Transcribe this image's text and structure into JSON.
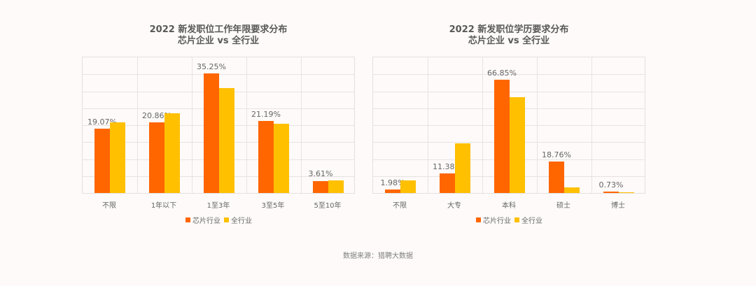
{
  "colors": {
    "background": "#fdfaf9",
    "series_chip": "#ff6600",
    "series_all": "#ffc000",
    "grid": "#e6e3e2",
    "text": "#595959"
  },
  "legend": {
    "series": [
      "芯片行业",
      "全行业"
    ]
  },
  "source": "数据来源：猎聘大数据",
  "chart_data": [
    {
      "type": "bar",
      "title": "2022 新发职位工作年限要求分布",
      "subtitle": "芯片企业 vs 全行业",
      "xlabel": "",
      "ylabel": "",
      "categories": [
        "不限",
        "1年以下",
        "1至3年",
        "3至5年",
        "5至10年"
      ],
      "series": [
        {
          "name": "芯片行业",
          "color": "#ff6600",
          "values": [
            19.07,
            20.86,
            35.25,
            21.19,
            3.61
          ],
          "labels": [
            "19.07%",
            "20.86%",
            "35.25%",
            "21.19%",
            "3.61%"
          ]
        },
        {
          "name": "全行业",
          "color": "#ffc000",
          "values": [
            20.9,
            23.6,
            31.0,
            20.4,
            3.8
          ]
        }
      ],
      "ylim": [
        0,
        40
      ],
      "grid": true,
      "gridlines": 8,
      "legend_position": "bottom"
    },
    {
      "type": "bar",
      "title": "2022 新发职位学历要求分布",
      "subtitle": "芯片企业 vs 全行业",
      "xlabel": "",
      "ylabel": "",
      "categories": [
        "不限",
        "大专",
        "本科",
        "硕士",
        "博士"
      ],
      "series": [
        {
          "name": "芯片行业",
          "color": "#ff6600",
          "values": [
            1.98,
            11.38,
            66.85,
            18.76,
            0.73
          ],
          "labels": [
            "1.98%",
            "11.38%",
            "66.85%",
            "18.76%",
            "0.73%"
          ]
        },
        {
          "name": "全行业",
          "color": "#ffc000",
          "values": [
            7.3,
            29.2,
            56.4,
            3.3,
            0.4
          ]
        }
      ],
      "ylim": [
        0,
        80
      ],
      "grid": true,
      "gridlines": 8,
      "legend_position": "bottom"
    }
  ]
}
